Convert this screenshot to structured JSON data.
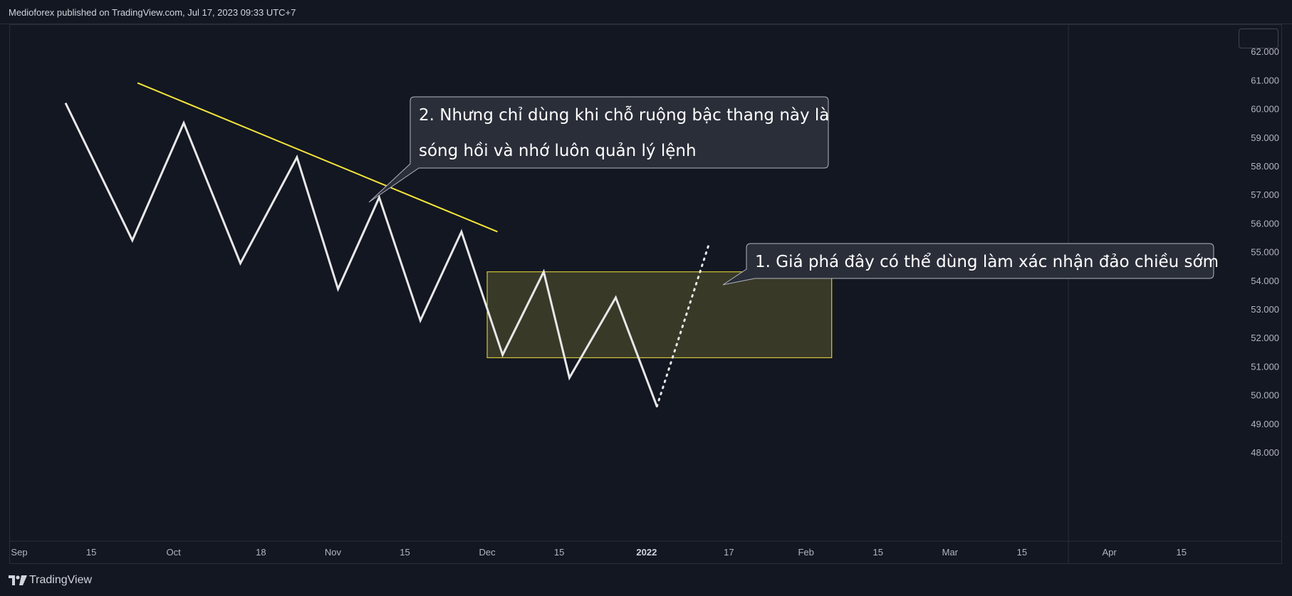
{
  "header": {
    "published_text": "Medioforex published on TradingView.com, Jul 17, 2023 09:33 UTC+7"
  },
  "footer": {
    "brand_text": "TradingView"
  },
  "colors": {
    "background": "#131722",
    "price_line": "#e8e8e8",
    "trendline": "#f5e53a",
    "zone_fill": "#3a3b28",
    "zone_border": "#f5e53a",
    "callout_bg": "#2a2e39",
    "callout_border": "#b2b5be"
  },
  "chart_data": {
    "type": "line",
    "y_axis": {
      "range": [
        47.5,
        63.0
      ],
      "ticks": [
        "48.000",
        "49.000",
        "50.000",
        "51.000",
        "52.000",
        "53.000",
        "54.000",
        "55.000",
        "56.000",
        "57.000",
        "58.000",
        "59.000",
        "60.000",
        "61.000",
        "62.000"
      ]
    },
    "x_axis": {
      "ticks": [
        {
          "label": "Sep",
          "day": 0
        },
        {
          "label": "15",
          "day": 14
        },
        {
          "label": "Oct",
          "day": 30
        },
        {
          "label": "18",
          "day": 47
        },
        {
          "label": "Nov",
          "day": 61
        },
        {
          "label": "15",
          "day": 75
        },
        {
          "label": "Dec",
          "day": 91
        },
        {
          "label": "15",
          "day": 105
        },
        {
          "label": "2022",
          "day": 122,
          "bold": true
        },
        {
          "label": "17",
          "day": 138
        },
        {
          "label": "Feb",
          "day": 153
        },
        {
          "label": "15",
          "day": 167
        },
        {
          "label": "Mar",
          "day": 181
        },
        {
          "label": "15",
          "day": 195
        },
        {
          "label": "Apr",
          "day": 212
        },
        {
          "label": "15",
          "day": 226
        }
      ],
      "range": [
        0,
        229
      ]
    },
    "series": [
      {
        "style": "solid",
        "points": [
          [
            9,
            60.2
          ],
          [
            22,
            55.4
          ],
          [
            32,
            59.5
          ],
          [
            43,
            54.6
          ],
          [
            54,
            58.3
          ],
          [
            62,
            53.7
          ],
          [
            70,
            56.9
          ],
          [
            78,
            52.6
          ],
          [
            86,
            55.7
          ],
          [
            94,
            51.4
          ],
          [
            102,
            54.3
          ],
          [
            107,
            50.6
          ],
          [
            116,
            53.4
          ],
          [
            124,
            49.6
          ]
        ]
      },
      {
        "style": "dotted",
        "points": [
          [
            124,
            49.6
          ],
          [
            134,
            55.2
          ]
        ]
      }
    ],
    "trendline": {
      "from": [
        23,
        60.9
      ],
      "to": [
        93,
        55.7
      ]
    },
    "zone": {
      "x0": 91,
      "x1": 158,
      "y0": 51.3,
      "y1": 54.3
    },
    "annotations": [
      {
        "id": "callout-1",
        "lines": [
          "1. Giá phá đây có thể dùng làm xác nhận đảo chiều sớm"
        ]
      },
      {
        "id": "callout-2",
        "lines": [
          "2. Nhưng chỉ dùng khi chỗ ruộng bậc thang này là",
          "sóng hồi và nhớ luôn quản lý lệnh"
        ]
      }
    ]
  }
}
